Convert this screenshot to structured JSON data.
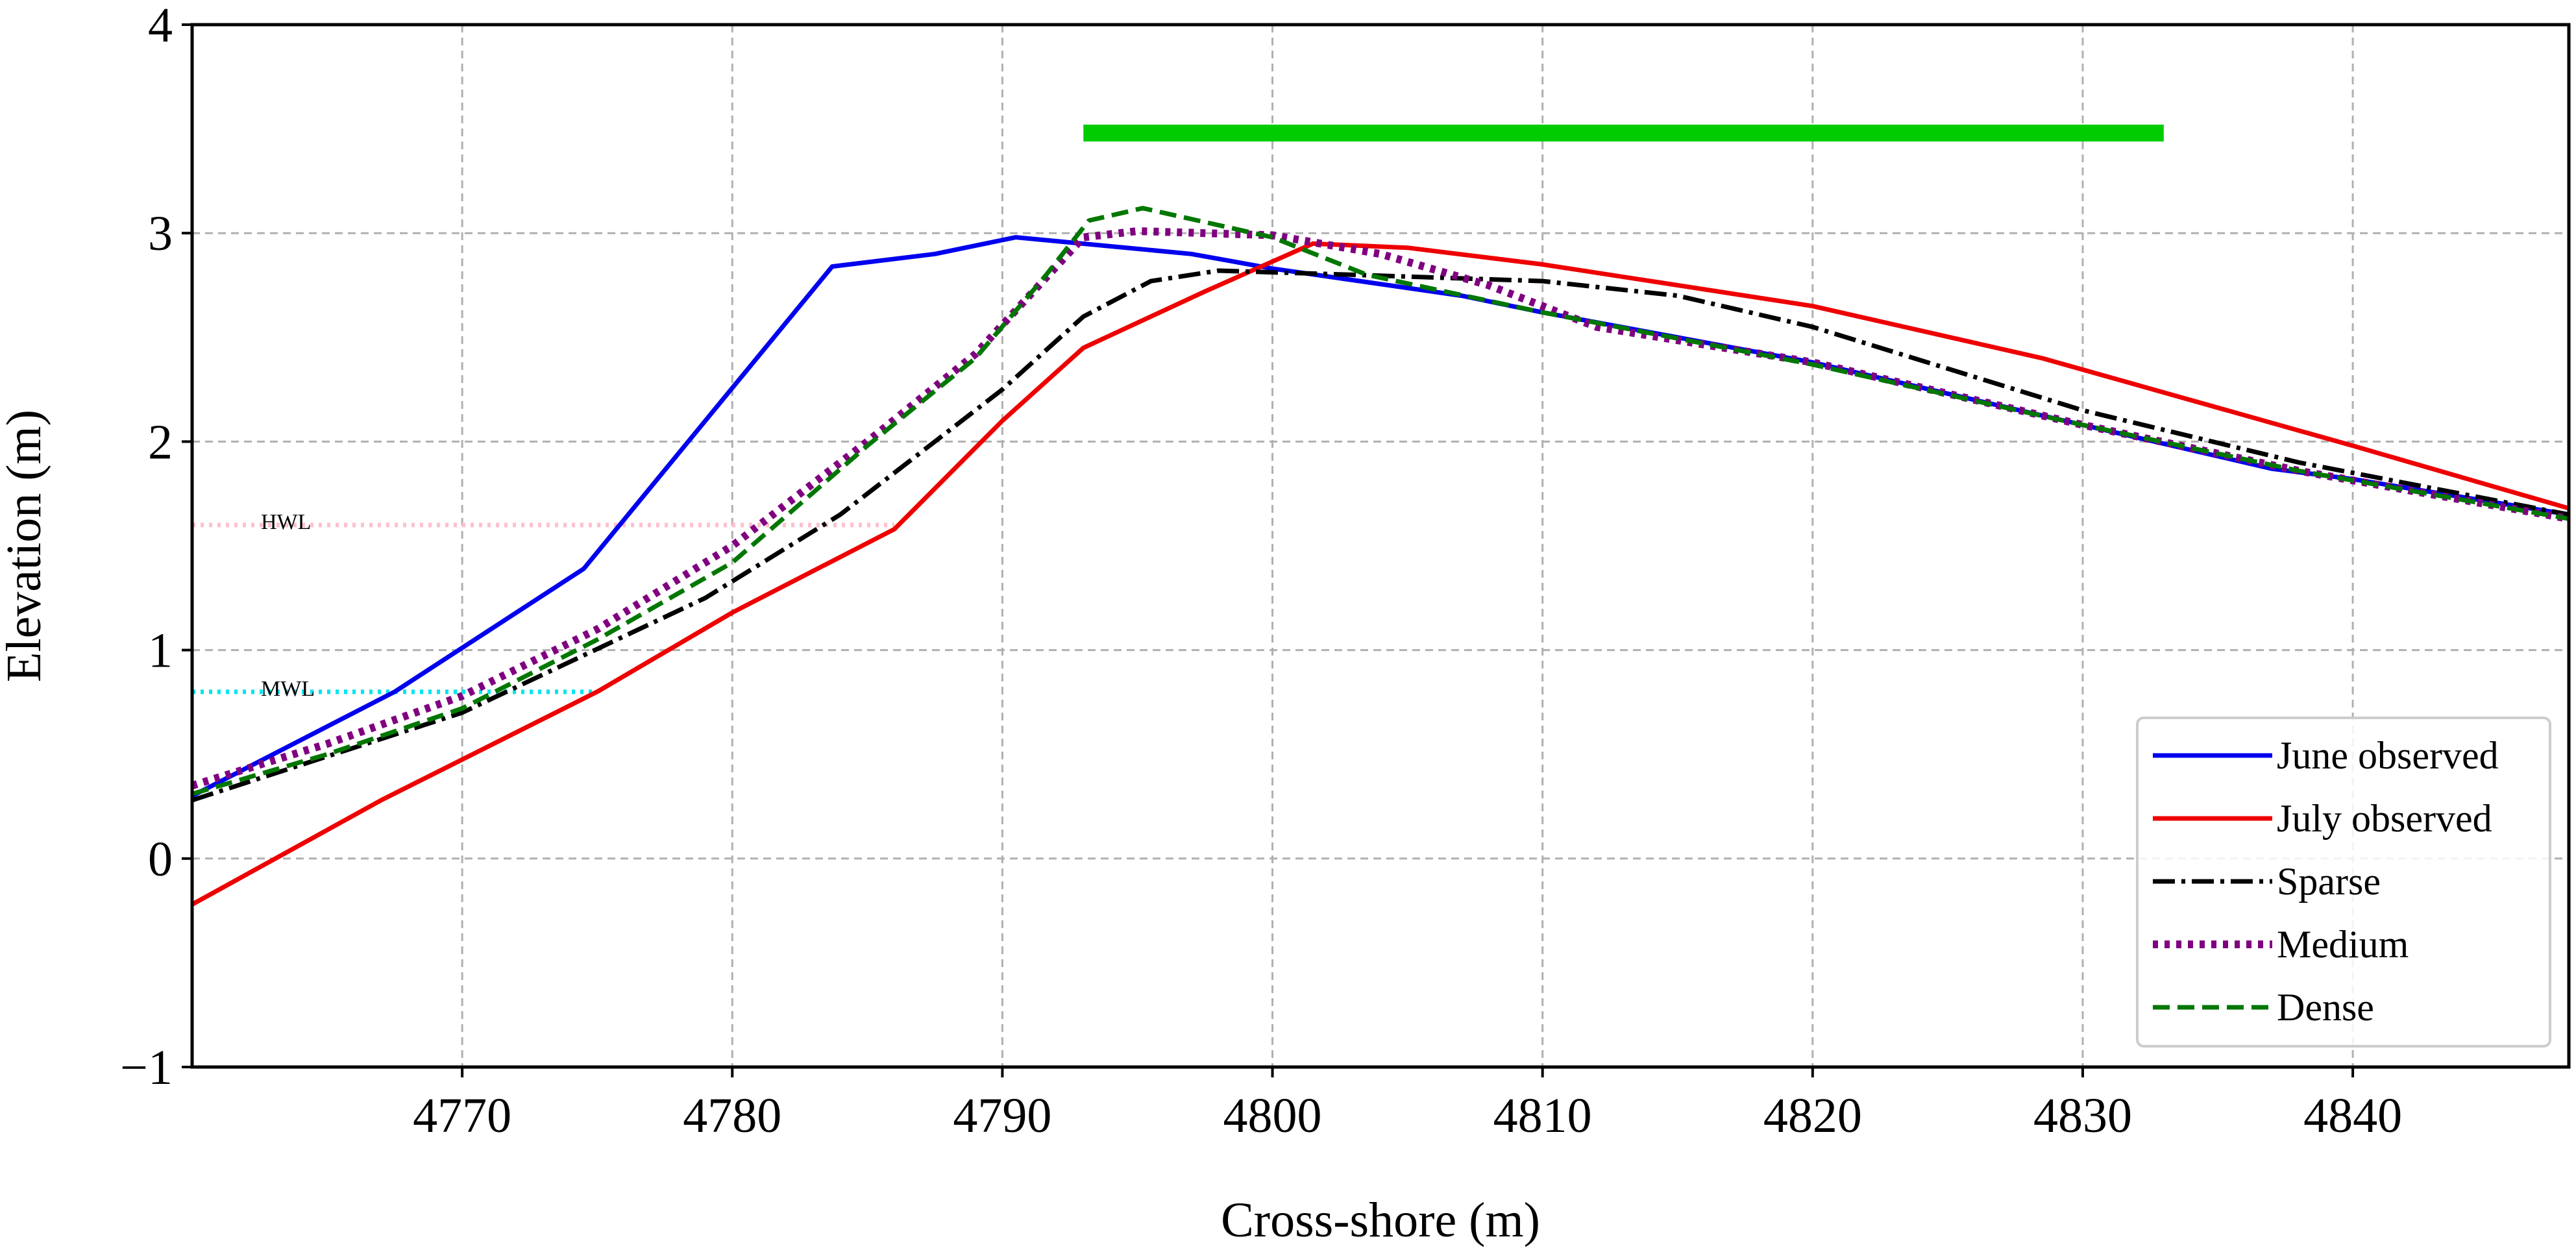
{
  "chart_data": {
    "type": "line",
    "title": "",
    "xlabel": "Cross-shore (m)",
    "ylabel": "Elevation (m)",
    "xlim": [
      4760,
      4848
    ],
    "ylim": [
      -1,
      4
    ],
    "xticks": [
      4770,
      4780,
      4790,
      4800,
      4810,
      4820,
      4830,
      4840
    ],
    "yticks": [
      -1,
      0,
      1,
      2,
      3,
      4
    ],
    "ytick_labels": [
      "−1",
      "0",
      "1",
      "2",
      "3",
      "4"
    ],
    "grid": true,
    "legend_position": "lower-right",
    "series": [
      {
        "name": "June observed",
        "color": "#0000ee",
        "style": "solid",
        "points": [
          [
            4760,
            0.3
          ],
          [
            4767.5,
            0.8
          ],
          [
            4774.5,
            1.39
          ],
          [
            4779,
            2.1
          ],
          [
            4783.7,
            2.84
          ],
          [
            4787.5,
            2.9
          ],
          [
            4790.5,
            2.98
          ],
          [
            4797,
            2.9
          ],
          [
            4800,
            2.83
          ],
          [
            4807,
            2.7
          ],
          [
            4810,
            2.62
          ],
          [
            4820,
            2.38
          ],
          [
            4830,
            2.08
          ],
          [
            4837,
            1.87
          ],
          [
            4840,
            1.82
          ],
          [
            4848,
            1.65
          ]
        ]
      },
      {
        "name": "July observed",
        "color": "#ee0000",
        "style": "solid",
        "points": [
          [
            4760,
            -0.22
          ],
          [
            4767,
            0.28
          ],
          [
            4775,
            0.8
          ],
          [
            4780,
            1.18
          ],
          [
            4786,
            1.58
          ],
          [
            4790,
            2.1
          ],
          [
            4793,
            2.45
          ],
          [
            4797.5,
            2.72
          ],
          [
            4801.5,
            2.95
          ],
          [
            4805,
            2.93
          ],
          [
            4810,
            2.85
          ],
          [
            4820,
            2.65
          ],
          [
            4828.5,
            2.4
          ],
          [
            4840,
            1.98
          ],
          [
            4848,
            1.68
          ]
        ]
      },
      {
        "name": "Sparse",
        "color": "#000000",
        "style": "dashdot",
        "points": [
          [
            4760,
            0.28
          ],
          [
            4770,
            0.7
          ],
          [
            4779,
            1.25
          ],
          [
            4784,
            1.65
          ],
          [
            4790,
            2.25
          ],
          [
            4793,
            2.6
          ],
          [
            4795.5,
            2.77
          ],
          [
            4798,
            2.82
          ],
          [
            4803,
            2.8
          ],
          [
            4810,
            2.77
          ],
          [
            4815,
            2.7
          ],
          [
            4820,
            2.55
          ],
          [
            4830,
            2.15
          ],
          [
            4838,
            1.9
          ],
          [
            4848,
            1.65
          ]
        ]
      },
      {
        "name": "Medium",
        "color": "#800080",
        "style": "dotted",
        "points": [
          [
            4760,
            0.35
          ],
          [
            4765,
            0.55
          ],
          [
            4770,
            0.78
          ],
          [
            4775,
            1.1
          ],
          [
            4780,
            1.5
          ],
          [
            4785,
            2.0
          ],
          [
            4789,
            2.42
          ],
          [
            4793,
            2.98
          ],
          [
            4795,
            3.01
          ],
          [
            4800,
            2.99
          ],
          [
            4804,
            2.9
          ],
          [
            4808,
            2.75
          ],
          [
            4812,
            2.55
          ],
          [
            4820,
            2.38
          ],
          [
            4830,
            2.08
          ],
          [
            4838,
            1.86
          ],
          [
            4848,
            1.63
          ]
        ]
      },
      {
        "name": "Dense",
        "color": "#007700",
        "style": "dashed",
        "points": [
          [
            4760,
            0.31
          ],
          [
            4765,
            0.5
          ],
          [
            4770,
            0.72
          ],
          [
            4775,
            1.05
          ],
          [
            4780,
            1.42
          ],
          [
            4785,
            1.98
          ],
          [
            4789,
            2.4
          ],
          [
            4791.5,
            2.78
          ],
          [
            4793.2,
            3.06
          ],
          [
            4795.2,
            3.12
          ],
          [
            4800,
            2.98
          ],
          [
            4803.5,
            2.8
          ],
          [
            4810,
            2.62
          ],
          [
            4820,
            2.37
          ],
          [
            4830,
            2.08
          ],
          [
            4838,
            1.86
          ],
          [
            4848,
            1.63
          ]
        ]
      }
    ],
    "reference_lines": [
      {
        "label": "HWL",
        "y": 1.6,
        "x": [
          4760,
          4786
        ],
        "color": "#ffc0cb"
      },
      {
        "label": "MWL",
        "y": 0.8,
        "x": [
          4760,
          4775
        ],
        "color": "#00e5ee"
      }
    ],
    "bar": {
      "x": [
        4793,
        4833
      ],
      "y": 3.48,
      "color": "#00cc00"
    }
  }
}
